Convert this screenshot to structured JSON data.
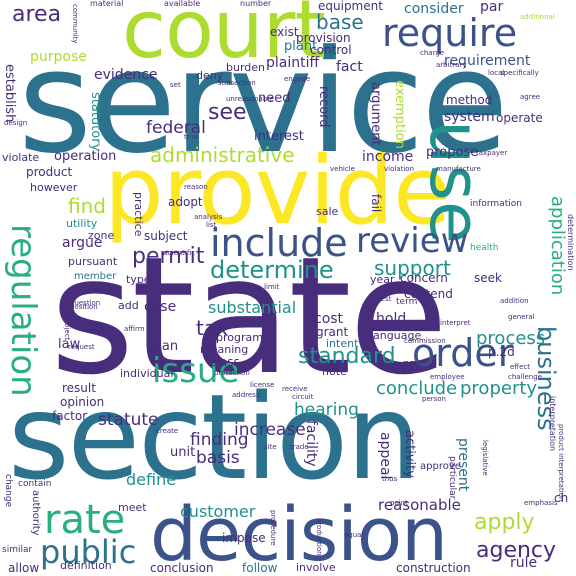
{
  "palette": {
    "dark_purple": "#472d7b",
    "navy": "#3b528b",
    "steel": "#2c728e",
    "teal": "#21918c",
    "green": "#28ae80",
    "light_green": "#5ec962",
    "lime": "#addc30",
    "yellow": "#fde725"
  },
  "words": {
    "state": "state",
    "service": "service",
    "section": "section",
    "provide": "provide",
    "court": "court",
    "decision": "decision",
    "use": "use",
    "require": "require",
    "include": "include",
    "review": "review",
    "regulation": "regulation",
    "issue": "issue",
    "order": "order",
    "rate": "rate",
    "public": "public",
    "determine": "determine",
    "administrative": "administrative",
    "permit": "permit",
    "standard": "standard",
    "area": "area",
    "agency": "agency",
    "apply": "apply",
    "business": "business",
    "application": "application",
    "find": "find",
    "support": "support",
    "see": "see",
    "base": "base",
    "consider": "consider",
    "requirement": "requirement",
    "evidence": "evidence",
    "plaintiff": "plaintiff",
    "fact": "fact",
    "tax": "tax",
    "substantial": "substantial",
    "process": "process",
    "property": "property",
    "conclude": "conclude",
    "hearing": "hearing",
    "increase": "increase",
    "finding": "finding",
    "basis": "basis",
    "define": "define",
    "customer": "customer",
    "statute": "statute",
    "unit": "unit",
    "case": "case",
    "plan": "plan",
    "law": "law",
    "cost": "cost",
    "hold": "hold",
    "grant": "grant",
    "federal": "federal",
    "interest": "interest",
    "system": "system",
    "exemption": "exemption",
    "income": "income",
    "propose": "propose",
    "argument": "argument",
    "record": "record",
    "statutory": "statutory",
    "purpose": "purpose",
    "argue": "argue",
    "establish": "establish",
    "operation": "operation",
    "violate": "violate",
    "product": "product",
    "however": "however",
    "utility": "utility",
    "zone": "zone",
    "pursuant": "pursuant",
    "subject": "subject",
    "result": "result",
    "opinion": "opinion",
    "factor": "factor",
    "reasonable": "reasonable",
    "present": "present",
    "appeal": "appeal",
    "activity": "activity",
    "facility": "facility",
    "meet": "meet",
    "impose": "impose",
    "conclusion": "conclusion",
    "follow": "follow",
    "involve": "involve",
    "construction": "construction",
    "rule": "rule",
    "par": "par",
    "method": "method",
    "operate": "operate",
    "seek": "seek",
    "contend": "contend",
    "concern": "concern",
    "year": "year",
    "gas": "gas",
    "note": "note",
    "intent": "intent",
    "language": "language",
    "class": "class",
    "meaning": "meaning",
    "program": "program",
    "individual": "individual",
    "adopt": "adopt",
    "practice": "practice",
    "need": "need",
    "plant": "plant",
    "provision": "provision",
    "control": "control",
    "exist": "exist",
    "burden": "burden",
    "deny": "deny",
    "equipment": "equipment",
    "sale": "sale",
    "type": "type",
    "member": "member",
    "add": "add",
    "change": "change",
    "authority": "authority",
    "similar": "similar",
    "definition": "definition",
    "allow": "allow",
    "ch": "ch",
    "p_2d": "p.2d",
    "particular": "particular",
    "approve": "approve",
    "fail": "fail",
    "information": "information",
    "health": "health",
    "material": "material",
    "available": "available",
    "number": "number",
    "community": "community",
    "additional": "additional",
    "charge": "charge",
    "arbitrary": "arbitrary",
    "specifically": "specifically",
    "local": "local",
    "agree": "agree",
    "design": "design",
    "reason": "reason",
    "trial": "trial",
    "subsection": "subsection",
    "analysis": "analysis",
    "list": "list",
    "effect": "effect",
    "challenge": "challenge",
    "general": "general",
    "addition": "addition",
    "employee": "employee",
    "commission": "commission",
    "person": "person",
    "legislative": "legislative",
    "question": "question",
    "request": "request",
    "position": "position",
    "affirm": "affirm",
    "license": "license",
    "receive": "receive",
    "protection": "protection",
    "address": "address",
    "circuit": "circuit",
    "create": "create",
    "site": "site",
    "trade": "trade",
    "thus": "thus",
    "point": "point",
    "equal": "equal",
    "contain": "contain",
    "emphasis": "emphasis",
    "interpretation": "interpretation",
    "determination": "determination",
    "manufacture": "manufacture",
    "test": "test",
    "limit": "limit",
    "project": "project",
    "procedure": "procedure",
    "production": "production",
    "scientific": "scientific",
    "interpret": "interpret",
    "vehicle": "vehicle",
    "unreasonable": "unreasonable",
    "set": "set",
    "engage": "engage",
    "taxpayer": "taxpayer",
    "violation": "violation",
    "term": "term",
    "product_interpretation": "product interpretation"
  }
}
